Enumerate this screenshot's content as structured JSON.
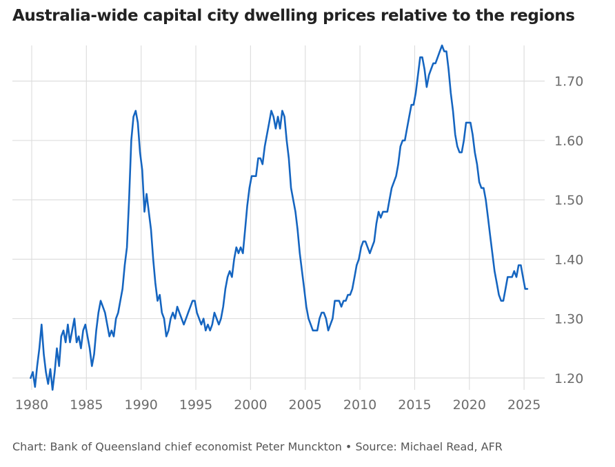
{
  "title": "Australia-wide capital city dwelling prices relative to the regions",
  "credit": "Chart: Bank of Queensland chief economist Peter Munckton • Source: Michael Read, AFR",
  "colors": {
    "line": "#1565c0",
    "grid": "#dedede",
    "axis_text": "#6b6b6b"
  },
  "chart_data": {
    "type": "line",
    "title": "Australia-wide capital city dwelling prices relative to the regions",
    "xlabel": "",
    "ylabel": "",
    "xlim": [
      1980,
      2026
    ],
    "ylim": [
      1.18,
      1.76
    ],
    "x_ticks": [
      1980,
      1985,
      1990,
      1995,
      2000,
      2005,
      2010,
      2015,
      2020,
      2025
    ],
    "y_ticks": [
      1.2,
      1.3,
      1.4,
      1.5,
      1.6,
      1.7
    ],
    "y_tick_labels": [
      "1.20",
      "1.30",
      "1.40",
      "1.50",
      "1.60",
      "1.70"
    ],
    "y_axis_side": "right",
    "grid": true,
    "series": [
      {
        "values": [
          [
            1979.9,
            1.2
          ],
          [
            1980.1,
            1.21
          ],
          [
            1980.3,
            1.185
          ],
          [
            1980.5,
            1.22
          ],
          [
            1980.7,
            1.25
          ],
          [
            1980.9,
            1.29
          ],
          [
            1981.1,
            1.24
          ],
          [
            1981.3,
            1.21
          ],
          [
            1981.5,
            1.19
          ],
          [
            1981.7,
            1.215
          ],
          [
            1981.9,
            1.18
          ],
          [
            1982.1,
            1.21
          ],
          [
            1982.3,
            1.25
          ],
          [
            1982.5,
            1.22
          ],
          [
            1982.7,
            1.27
          ],
          [
            1982.9,
            1.28
          ],
          [
            1983.1,
            1.26
          ],
          [
            1983.3,
            1.29
          ],
          [
            1983.5,
            1.26
          ],
          [
            1983.7,
            1.28
          ],
          [
            1983.9,
            1.3
          ],
          [
            1984.1,
            1.26
          ],
          [
            1984.3,
            1.27
          ],
          [
            1984.5,
            1.25
          ],
          [
            1984.7,
            1.28
          ],
          [
            1984.9,
            1.29
          ],
          [
            1985.1,
            1.27
          ],
          [
            1985.3,
            1.25
          ],
          [
            1985.5,
            1.22
          ],
          [
            1985.7,
            1.24
          ],
          [
            1985.9,
            1.28
          ],
          [
            1986.1,
            1.31
          ],
          [
            1986.3,
            1.33
          ],
          [
            1986.5,
            1.32
          ],
          [
            1986.7,
            1.31
          ],
          [
            1986.9,
            1.29
          ],
          [
            1987.1,
            1.27
          ],
          [
            1987.3,
            1.28
          ],
          [
            1987.5,
            1.27
          ],
          [
            1987.7,
            1.3
          ],
          [
            1987.9,
            1.31
          ],
          [
            1988.1,
            1.33
          ],
          [
            1988.3,
            1.35
          ],
          [
            1988.5,
            1.39
          ],
          [
            1988.7,
            1.42
          ],
          [
            1988.9,
            1.5
          ],
          [
            1989.1,
            1.6
          ],
          [
            1989.3,
            1.64
          ],
          [
            1989.5,
            1.65
          ],
          [
            1989.7,
            1.63
          ],
          [
            1989.9,
            1.58
          ],
          [
            1990.1,
            1.55
          ],
          [
            1990.3,
            1.48
          ],
          [
            1990.5,
            1.51
          ],
          [
            1990.7,
            1.48
          ],
          [
            1990.9,
            1.45
          ],
          [
            1991.1,
            1.4
          ],
          [
            1991.3,
            1.36
          ],
          [
            1991.5,
            1.33
          ],
          [
            1991.7,
            1.34
          ],
          [
            1991.9,
            1.31
          ],
          [
            1992.1,
            1.3
          ],
          [
            1992.3,
            1.27
          ],
          [
            1992.5,
            1.28
          ],
          [
            1992.7,
            1.3
          ],
          [
            1992.9,
            1.31
          ],
          [
            1993.1,
            1.3
          ],
          [
            1993.3,
            1.32
          ],
          [
            1993.5,
            1.31
          ],
          [
            1993.7,
            1.3
          ],
          [
            1993.9,
            1.29
          ],
          [
            1994.1,
            1.3
          ],
          [
            1994.3,
            1.31
          ],
          [
            1994.5,
            1.32
          ],
          [
            1994.7,
            1.33
          ],
          [
            1994.9,
            1.33
          ],
          [
            1995.1,
            1.31
          ],
          [
            1995.3,
            1.3
          ],
          [
            1995.5,
            1.29
          ],
          [
            1995.7,
            1.3
          ],
          [
            1995.9,
            1.28
          ],
          [
            1996.1,
            1.29
          ],
          [
            1996.3,
            1.28
          ],
          [
            1996.5,
            1.29
          ],
          [
            1996.7,
            1.31
          ],
          [
            1996.9,
            1.3
          ],
          [
            1997.1,
            1.29
          ],
          [
            1997.3,
            1.3
          ],
          [
            1997.5,
            1.32
          ],
          [
            1997.7,
            1.35
          ],
          [
            1997.9,
            1.37
          ],
          [
            1998.1,
            1.38
          ],
          [
            1998.3,
            1.37
          ],
          [
            1998.5,
            1.4
          ],
          [
            1998.7,
            1.42
          ],
          [
            1998.9,
            1.41
          ],
          [
            1999.1,
            1.42
          ],
          [
            1999.3,
            1.41
          ],
          [
            1999.5,
            1.45
          ],
          [
            1999.7,
            1.49
          ],
          [
            1999.9,
            1.52
          ],
          [
            2000.1,
            1.54
          ],
          [
            2000.3,
            1.54
          ],
          [
            2000.5,
            1.54
          ],
          [
            2000.7,
            1.57
          ],
          [
            2000.9,
            1.57
          ],
          [
            2001.1,
            1.56
          ],
          [
            2001.3,
            1.59
          ],
          [
            2001.5,
            1.61
          ],
          [
            2001.7,
            1.63
          ],
          [
            2001.9,
            1.65
          ],
          [
            2002.1,
            1.64
          ],
          [
            2002.3,
            1.62
          ],
          [
            2002.5,
            1.64
          ],
          [
            2002.7,
            1.62
          ],
          [
            2002.9,
            1.65
          ],
          [
            2003.1,
            1.64
          ],
          [
            2003.3,
            1.6
          ],
          [
            2003.5,
            1.57
          ],
          [
            2003.7,
            1.52
          ],
          [
            2003.9,
            1.5
          ],
          [
            2004.1,
            1.48
          ],
          [
            2004.3,
            1.45
          ],
          [
            2004.5,
            1.41
          ],
          [
            2004.7,
            1.38
          ],
          [
            2004.9,
            1.35
          ],
          [
            2005.1,
            1.32
          ],
          [
            2005.3,
            1.3
          ],
          [
            2005.5,
            1.29
          ],
          [
            2005.7,
            1.28
          ],
          [
            2005.9,
            1.28
          ],
          [
            2006.1,
            1.28
          ],
          [
            2006.3,
            1.3
          ],
          [
            2006.5,
            1.31
          ],
          [
            2006.7,
            1.31
          ],
          [
            2006.9,
            1.3
          ],
          [
            2007.1,
            1.28
          ],
          [
            2007.3,
            1.29
          ],
          [
            2007.5,
            1.3
          ],
          [
            2007.7,
            1.33
          ],
          [
            2007.9,
            1.33
          ],
          [
            2008.1,
            1.33
          ],
          [
            2008.3,
            1.32
          ],
          [
            2008.5,
            1.33
          ],
          [
            2008.7,
            1.33
          ],
          [
            2008.9,
            1.34
          ],
          [
            2009.1,
            1.34
          ],
          [
            2009.3,
            1.35
          ],
          [
            2009.5,
            1.37
          ],
          [
            2009.7,
            1.39
          ],
          [
            2009.9,
            1.4
          ],
          [
            2010.1,
            1.42
          ],
          [
            2010.3,
            1.43
          ],
          [
            2010.5,
            1.43
          ],
          [
            2010.7,
            1.42
          ],
          [
            2010.9,
            1.41
          ],
          [
            2011.1,
            1.42
          ],
          [
            2011.3,
            1.43
          ],
          [
            2011.5,
            1.46
          ],
          [
            2011.7,
            1.48
          ],
          [
            2011.9,
            1.47
          ],
          [
            2012.1,
            1.48
          ],
          [
            2012.3,
            1.48
          ],
          [
            2012.5,
            1.48
          ],
          [
            2012.7,
            1.5
          ],
          [
            2012.9,
            1.52
          ],
          [
            2013.1,
            1.53
          ],
          [
            2013.3,
            1.54
          ],
          [
            2013.5,
            1.56
          ],
          [
            2013.7,
            1.59
          ],
          [
            2013.9,
            1.6
          ],
          [
            2014.1,
            1.6
          ],
          [
            2014.3,
            1.62
          ],
          [
            2014.5,
            1.64
          ],
          [
            2014.7,
            1.66
          ],
          [
            2014.9,
            1.66
          ],
          [
            2015.1,
            1.68
          ],
          [
            2015.3,
            1.71
          ],
          [
            2015.5,
            1.74
          ],
          [
            2015.7,
            1.74
          ],
          [
            2015.9,
            1.72
          ],
          [
            2016.1,
            1.69
          ],
          [
            2016.3,
            1.71
          ],
          [
            2016.5,
            1.72
          ],
          [
            2016.7,
            1.73
          ],
          [
            2016.9,
            1.73
          ],
          [
            2017.1,
            1.74
          ],
          [
            2017.3,
            1.75
          ],
          [
            2017.5,
            1.76
          ],
          [
            2017.7,
            1.75
          ],
          [
            2017.9,
            1.75
          ],
          [
            2018.1,
            1.72
          ],
          [
            2018.3,
            1.68
          ],
          [
            2018.5,
            1.65
          ],
          [
            2018.7,
            1.61
          ],
          [
            2018.9,
            1.59
          ],
          [
            2019.1,
            1.58
          ],
          [
            2019.3,
            1.58
          ],
          [
            2019.5,
            1.6
          ],
          [
            2019.7,
            1.63
          ],
          [
            2019.9,
            1.63
          ],
          [
            2020.1,
            1.63
          ],
          [
            2020.3,
            1.61
          ],
          [
            2020.5,
            1.58
          ],
          [
            2020.7,
            1.56
          ],
          [
            2020.9,
            1.53
          ],
          [
            2021.1,
            1.52
          ],
          [
            2021.3,
            1.52
          ],
          [
            2021.5,
            1.5
          ],
          [
            2021.7,
            1.47
          ],
          [
            2021.9,
            1.44
          ],
          [
            2022.1,
            1.41
          ],
          [
            2022.3,
            1.38
          ],
          [
            2022.5,
            1.36
          ],
          [
            2022.7,
            1.34
          ],
          [
            2022.9,
            1.33
          ],
          [
            2023.1,
            1.33
          ],
          [
            2023.3,
            1.35
          ],
          [
            2023.5,
            1.37
          ],
          [
            2023.7,
            1.37
          ],
          [
            2023.9,
            1.37
          ],
          [
            2024.1,
            1.38
          ],
          [
            2024.3,
            1.37
          ],
          [
            2024.5,
            1.39
          ],
          [
            2024.7,
            1.39
          ],
          [
            2024.9,
            1.37
          ],
          [
            2025.1,
            1.35
          ],
          [
            2025.3,
            1.35
          ]
        ]
      }
    ]
  }
}
